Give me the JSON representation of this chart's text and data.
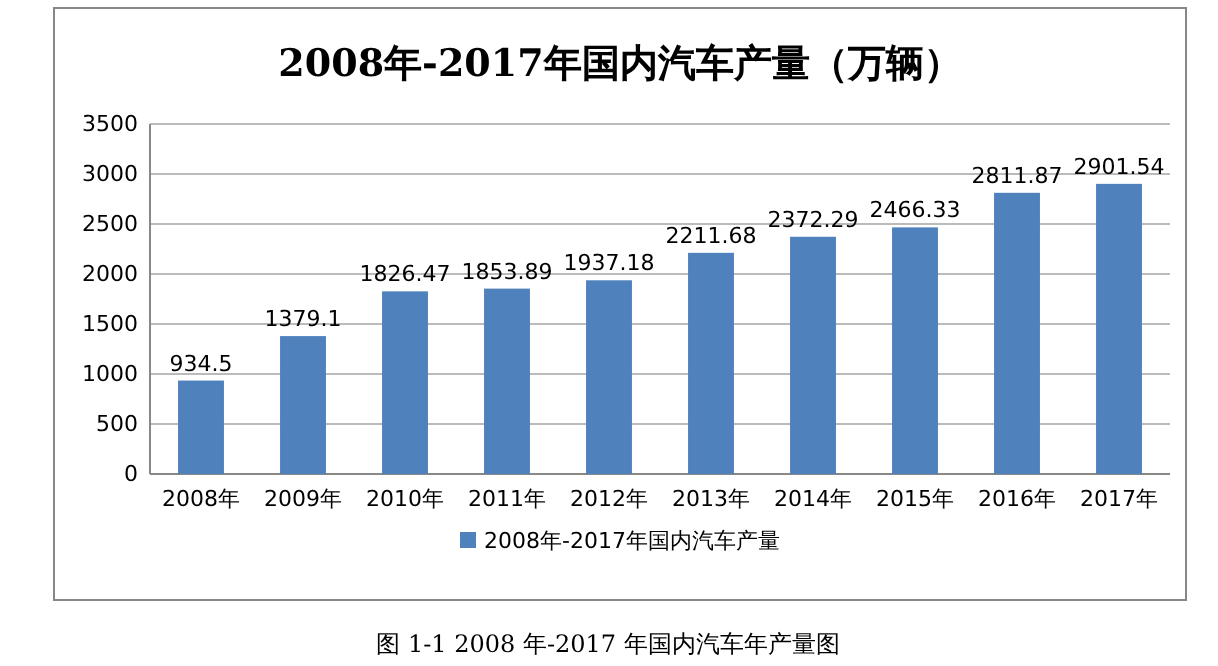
{
  "chart_data": {
    "type": "bar",
    "title": "2008年-2017年国内汽车产量（万辆）",
    "categories": [
      "2008年",
      "2009年",
      "2010年",
      "2011年",
      "2012年",
      "2013年",
      "2014年",
      "2015年",
      "2016年",
      "2017年"
    ],
    "series": [
      {
        "name": "2008年-2017年国内汽车产量",
        "color": "#4f81bd",
        "values": [
          934.5,
          1379.1,
          1826.47,
          1853.89,
          1937.18,
          2211.68,
          2372.29,
          2466.33,
          2811.87,
          2901.54
        ]
      }
    ],
    "ylim": [
      0,
      3500
    ],
    "yticks": [
      0,
      500,
      1000,
      1500,
      2000,
      2500,
      3000,
      3500
    ],
    "grid": "y",
    "legend": "bottom",
    "data_labels": true,
    "annotations": [
      "图 1-1    2008 年-2017 年国内汽车年产量图"
    ]
  }
}
